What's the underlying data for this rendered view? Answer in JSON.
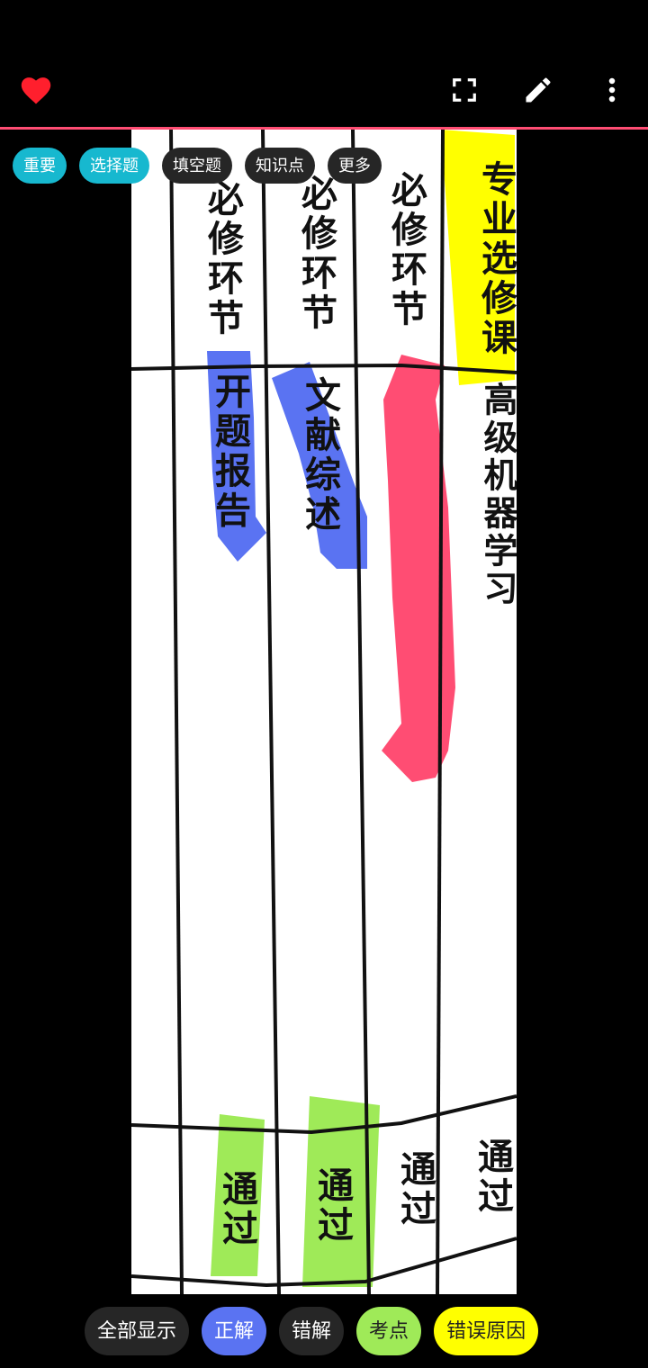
{
  "toolbar": {
    "favorite_icon": "heart-icon",
    "fullscreen_icon": "fullscreen-icon",
    "edit_icon": "pencil-icon",
    "more_icon": "more-vert-icon",
    "accent_color": "#ff4d73"
  },
  "tags": [
    {
      "label": "重要",
      "color": "#17b8cf"
    },
    {
      "label": "选择题",
      "color": "#17b8cf"
    },
    {
      "label": "填空题",
      "color": "#262626"
    },
    {
      "label": "知识点",
      "color": "#262626"
    },
    {
      "label": "更多",
      "color": "#262626"
    }
  ],
  "document": {
    "col1_header": "必修环节",
    "col1_item": "开题报告",
    "col1_result": "通过",
    "col2_header": "必修环节",
    "col2_item": "文献综述",
    "col2_result": "通过",
    "col3_header": "必修环节",
    "col3_result": "通过",
    "col4_header": "专业选修课",
    "col4_item": "高级机器学习",
    "col4_result": "通过"
  },
  "highlights": {
    "blue": "#5a73f2",
    "red": "#ff4d73",
    "green": "#9fea58",
    "yellow": "#ffff00"
  },
  "bottom_actions": [
    {
      "label": "全部显示"
    },
    {
      "label": "正解"
    },
    {
      "label": "错解"
    },
    {
      "label": "考点"
    },
    {
      "label": "错误原因"
    }
  ]
}
